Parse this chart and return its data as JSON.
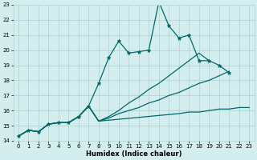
{
  "xlabel": "Humidex (Indice chaleur)",
  "bg_color": "#d4eef0",
  "grid_color": "#b8d8d8",
  "line_color": "#006868",
  "xlim": [
    -0.5,
    23.5
  ],
  "ylim": [
    14,
    23
  ],
  "xtick_labels": [
    "0",
    "1",
    "2",
    "3",
    "4",
    "5",
    "6",
    "7",
    "8",
    "9",
    "10",
    "11",
    "12",
    "13",
    "14",
    "15",
    "16",
    "17",
    "18",
    "19",
    "20",
    "21",
    "22",
    "23"
  ],
  "yticks": [
    14,
    15,
    16,
    17,
    18,
    19,
    20,
    21,
    22,
    23
  ],
  "series": [
    {
      "x": [
        0,
        1,
        2,
        3,
        4,
        5,
        6,
        7,
        8,
        9,
        10,
        11,
        12,
        13,
        14,
        15,
        16,
        17,
        18,
        19,
        20,
        21
      ],
      "y": [
        14.3,
        14.7,
        14.6,
        15.1,
        15.2,
        15.2,
        15.6,
        16.3,
        17.8,
        19.5,
        20.6,
        19.8,
        19.9,
        20.0,
        23.2,
        21.6,
        20.8,
        21.0,
        19.3,
        19.3,
        19.0,
        18.5
      ],
      "marker": "*",
      "markersize": 3.5,
      "linewidth": 0.9
    },
    {
      "x": [
        0,
        1,
        2,
        3,
        4,
        5,
        6,
        7,
        8,
        16,
        17,
        18,
        19,
        20,
        21,
        22,
        23
      ],
      "y": [
        14.3,
        14.7,
        14.6,
        15.1,
        15.2,
        15.2,
        15.6,
        16.3,
        15.3,
        15.8,
        15.9,
        15.9,
        16.0,
        16.1,
        16.1,
        16.2,
        16.2
      ],
      "marker": null,
      "markersize": 0,
      "linewidth": 0.9
    },
    {
      "x": [
        0,
        1,
        2,
        3,
        4,
        5,
        6,
        7,
        8,
        9,
        10,
        11,
        12,
        13,
        14,
        15,
        16,
        17,
        18,
        19,
        20,
        21
      ],
      "y": [
        14.3,
        14.7,
        14.6,
        15.1,
        15.2,
        15.2,
        15.6,
        16.3,
        15.3,
        15.5,
        15.8,
        16.0,
        16.2,
        16.5,
        16.7,
        17.0,
        17.2,
        17.5,
        17.8,
        18.0,
        18.3,
        18.6
      ],
      "marker": null,
      "markersize": 0,
      "linewidth": 0.9
    },
    {
      "x": [
        0,
        1,
        2,
        3,
        4,
        5,
        6,
        7,
        8,
        9,
        10,
        11,
        12,
        13,
        14,
        15,
        16,
        17,
        18,
        19
      ],
      "y": [
        14.3,
        14.7,
        14.6,
        15.1,
        15.2,
        15.2,
        15.6,
        16.3,
        15.3,
        15.6,
        16.0,
        16.5,
        16.9,
        17.4,
        17.8,
        18.3,
        18.8,
        19.3,
        19.8,
        19.3
      ],
      "marker": null,
      "markersize": 0,
      "linewidth": 0.9
    }
  ]
}
